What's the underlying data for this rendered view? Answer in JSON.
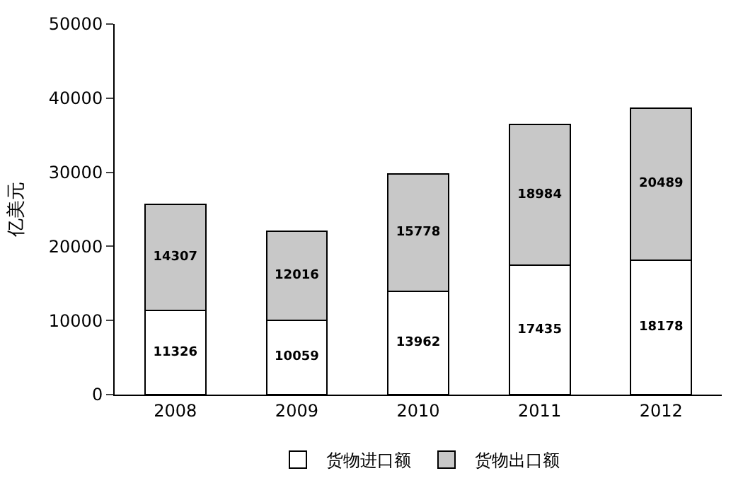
{
  "chart_data": {
    "type": "bar",
    "ylabel": "亿美元",
    "categories": [
      "2008",
      "2009",
      "2010",
      "2011",
      "2012"
    ],
    "series": [
      {
        "name": "货物进口额",
        "color": "#ffffff",
        "values": [
          11326,
          10059,
          13962,
          17435,
          18178
        ]
      },
      {
        "name": "货物出口额",
        "color": "#c8c8c8",
        "values": [
          14307,
          12016,
          15778,
          18984,
          20489
        ]
      }
    ],
    "stacked": true,
    "data_labels": true,
    "ylim": [
      0,
      50000
    ],
    "yticks": [
      0,
      10000,
      20000,
      30000,
      40000,
      50000
    ],
    "legend": "bottom"
  }
}
